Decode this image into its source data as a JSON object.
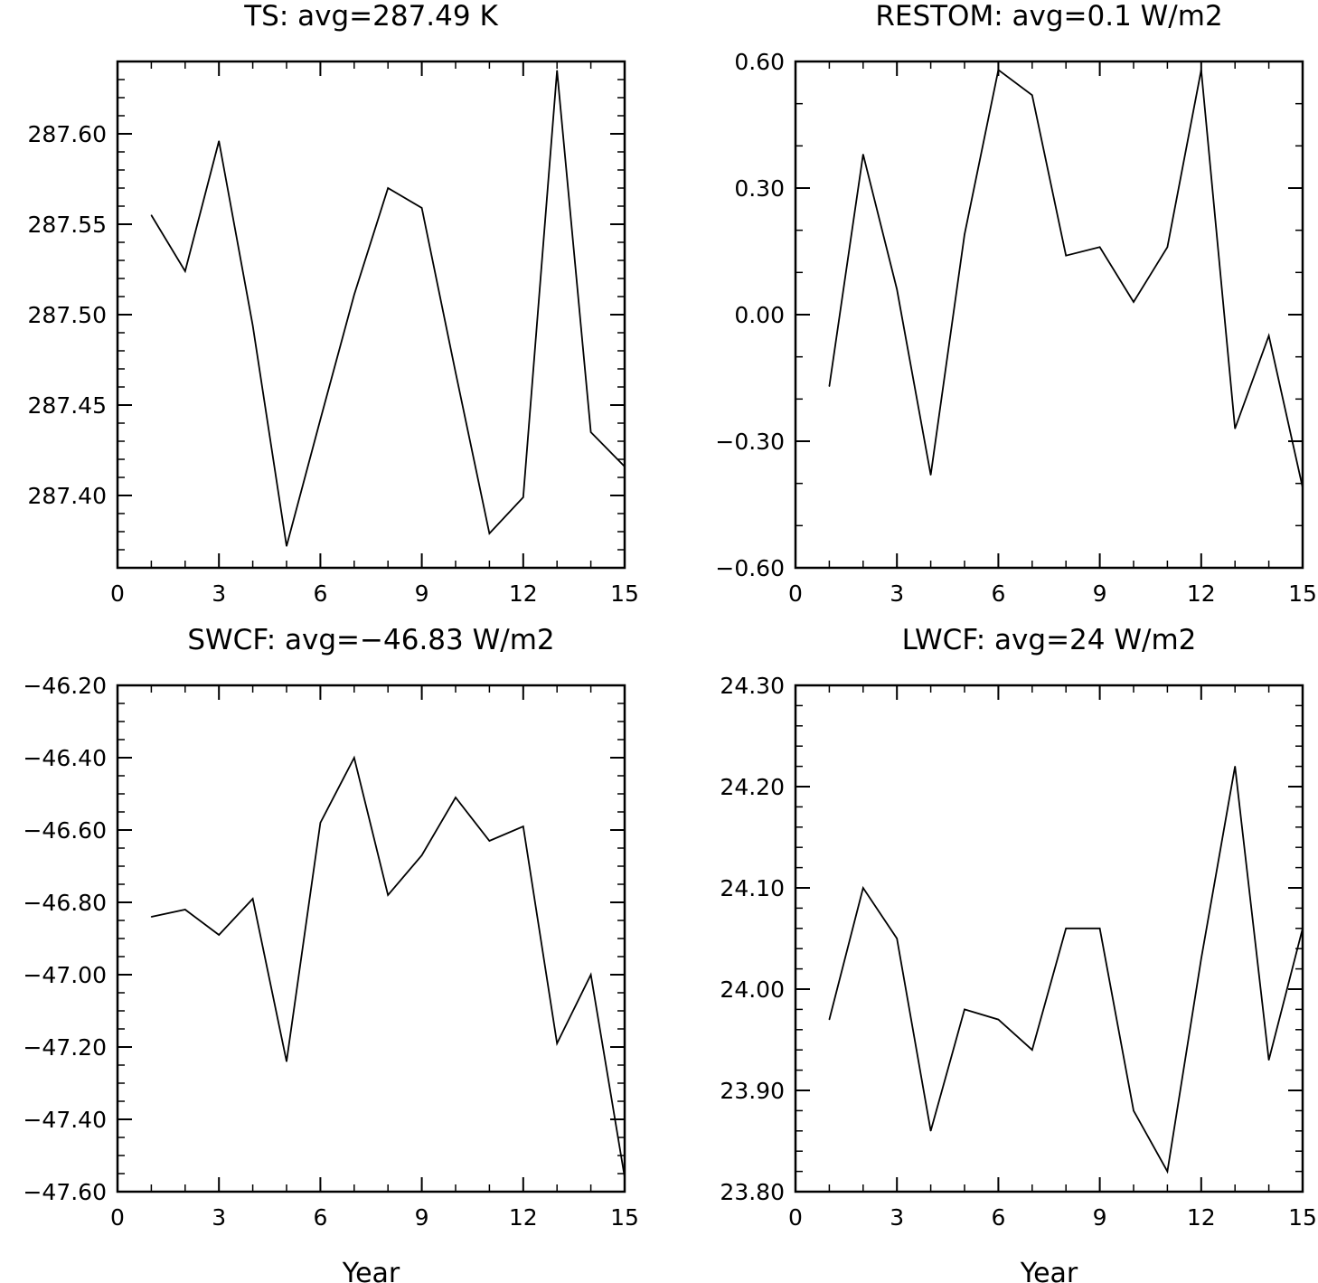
{
  "chart_data": [
    {
      "type": "line",
      "title": "TS: avg=287.49 K",
      "xlabel": "",
      "ylabel": "",
      "x": [
        1,
        2,
        3,
        4,
        5,
        6,
        7,
        8,
        9,
        10,
        11,
        12,
        13,
        14,
        15
      ],
      "series": [
        {
          "values": [
            287.555,
            287.524,
            287.596,
            287.494,
            287.372,
            287.442,
            287.511,
            287.57,
            287.559,
            287.468,
            287.379,
            287.399,
            287.635,
            287.435,
            287.416
          ]
        }
      ],
      "xlim": [
        0,
        15
      ],
      "ylim": [
        287.36,
        287.64
      ],
      "xticks": [
        0,
        3,
        6,
        9,
        12,
        15
      ],
      "xtick_labels": [
        "0",
        "3",
        "6",
        "9",
        "12",
        "15"
      ],
      "yticks": [
        287.4,
        287.45,
        287.5,
        287.55,
        287.6
      ],
      "ytick_labels": [
        "287.40",
        "287.45",
        "287.50",
        "287.55",
        "287.60"
      ],
      "x_minor_step": 1,
      "y_minor_step": 0.01,
      "grid": false
    },
    {
      "type": "line",
      "title": "RESTOM: avg=0.1 W/m2",
      "xlabel": "",
      "ylabel": "",
      "x": [
        1,
        2,
        3,
        4,
        5,
        6,
        7,
        8,
        9,
        10,
        11,
        12,
        13,
        14,
        15
      ],
      "series": [
        {
          "values": [
            -0.17,
            0.38,
            0.06,
            -0.38,
            0.19,
            0.58,
            0.52,
            0.14,
            0.16,
            0.03,
            0.16,
            0.58,
            -0.27,
            -0.05,
            -0.41
          ]
        }
      ],
      "xlim": [
        0,
        15
      ],
      "ylim": [
        -0.6,
        0.6
      ],
      "xticks": [
        0,
        3,
        6,
        9,
        12,
        15
      ],
      "xtick_labels": [
        "0",
        "3",
        "6",
        "9",
        "12",
        "15"
      ],
      "yticks": [
        -0.6,
        -0.3,
        0.0,
        0.3,
        0.6
      ],
      "ytick_labels": [
        "−0.60",
        "−0.30",
        "0.00",
        "0.30",
        "0.60"
      ],
      "x_minor_step": 1,
      "y_minor_step": 0.1,
      "grid": false
    },
    {
      "type": "line",
      "title": "SWCF: avg=−46.83 W/m2",
      "xlabel": "Year",
      "ylabel": "",
      "x": [
        1,
        2,
        3,
        4,
        5,
        6,
        7,
        8,
        9,
        10,
        11,
        12,
        13,
        14,
        15
      ],
      "series": [
        {
          "values": [
            -46.84,
            -46.82,
            -46.89,
            -46.79,
            -47.24,
            -46.58,
            -46.4,
            -46.78,
            -46.67,
            -46.51,
            -46.63,
            -46.59,
            -47.19,
            -47.0,
            -47.56
          ]
        }
      ],
      "xlim": [
        0,
        15
      ],
      "ylim": [
        -47.6,
        -46.2
      ],
      "xticks": [
        0,
        3,
        6,
        9,
        12,
        15
      ],
      "xtick_labels": [
        "0",
        "3",
        "6",
        "9",
        "12",
        "15"
      ],
      "yticks": [
        -47.6,
        -47.4,
        -47.2,
        -47.0,
        -46.8,
        -46.6,
        -46.4,
        -46.2
      ],
      "ytick_labels": [
        "−47.60",
        "−47.40",
        "−47.20",
        "−47.00",
        "−46.80",
        "−46.60",
        "−46.40",
        "−46.20"
      ],
      "x_minor_step": 1,
      "y_minor_step": 0.05,
      "grid": false
    },
    {
      "type": "line",
      "title": "LWCF: avg=24 W/m2",
      "xlabel": "Year",
      "ylabel": "",
      "x": [
        1,
        2,
        3,
        4,
        5,
        6,
        7,
        8,
        9,
        10,
        11,
        12,
        13,
        14,
        15
      ],
      "series": [
        {
          "values": [
            23.97,
            24.1,
            24.05,
            23.86,
            23.98,
            23.97,
            23.94,
            24.06,
            24.06,
            23.88,
            23.82,
            24.03,
            24.22,
            23.93,
            24.06
          ]
        }
      ],
      "xlim": [
        0,
        15
      ],
      "ylim": [
        23.8,
        24.3
      ],
      "xticks": [
        0,
        3,
        6,
        9,
        12,
        15
      ],
      "xtick_labels": [
        "0",
        "3",
        "6",
        "9",
        "12",
        "15"
      ],
      "yticks": [
        23.8,
        23.9,
        24.0,
        24.1,
        24.2,
        24.3
      ],
      "ytick_labels": [
        "23.80",
        "23.90",
        "24.00",
        "24.10",
        "24.20",
        "24.30"
      ],
      "x_minor_step": 1,
      "y_minor_step": 0.02,
      "grid": false
    }
  ]
}
